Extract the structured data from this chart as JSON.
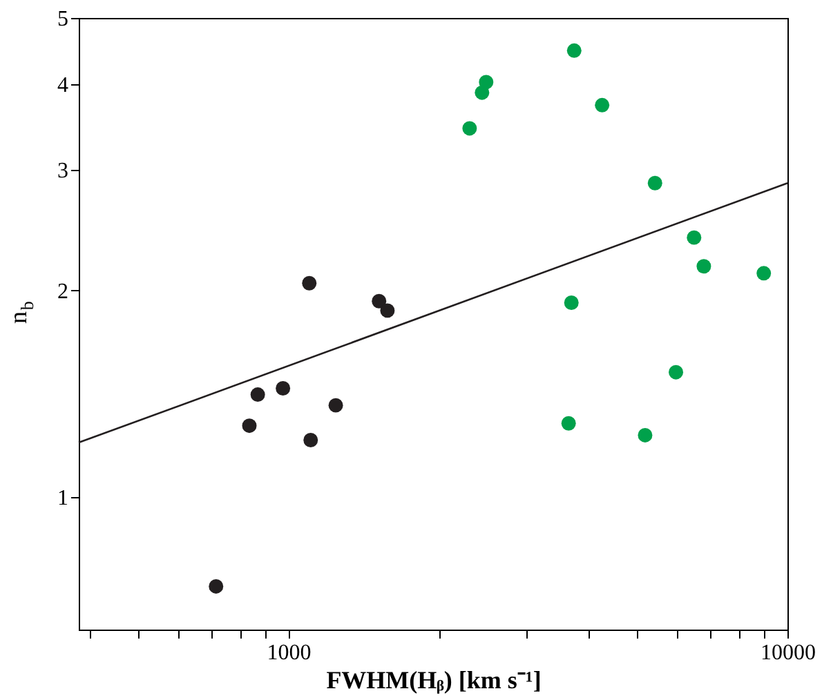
{
  "chart_data": {
    "type": "scatter",
    "xlabel": "FWHM(Hᵦ) [km s⁻¹]",
    "ylabel": "n$_{b}$",
    "log": "xy",
    "grid": false,
    "marker": "circle",
    "xlim": [
      380,
      10000
    ],
    "ylim": [
      0.64,
      5
    ],
    "xticks": [
      {
        "value": 400,
        "label": null
      },
      {
        "value": 500,
        "label": null
      },
      {
        "value": 600,
        "label": null
      },
      {
        "value": 700,
        "label": null
      },
      {
        "value": 800,
        "label": null
      },
      {
        "value": 900,
        "label": null
      },
      1000,
      {
        "value": 2000,
        "label": null
      },
      {
        "value": 3000,
        "label": null
      },
      {
        "value": 4000,
        "label": null
      },
      {
        "value": 5000,
        "label": null
      },
      {
        "value": 6000,
        "label": null
      },
      {
        "value": 7000,
        "label": null
      },
      {
        "value": 8000,
        "label": null
      },
      {
        "value": 9000,
        "label": null
      },
      10000
    ],
    "yticks": [
      1,
      2,
      3,
      4,
      5
    ],
    "series": [
      {
        "color": "#231f20",
        "x": [
          716,
          835,
          868,
          975,
          1101,
          1108,
          1244,
          1519,
          1579
        ],
        "values": [
          0.74,
          1.27,
          1.41,
          1.44,
          2.05,
          1.21,
          1.36,
          1.93,
          1.87
        ]
      },
      {
        "color": "#00a14b",
        "x": [
          2307,
          2443,
          2490,
          3738,
          4252,
          3690,
          3643,
          5427,
          5185,
          5977,
          6499,
          6798,
          8965
        ],
        "values": [
          3.45,
          3.89,
          4.03,
          4.48,
          3.73,
          1.92,
          1.28,
          2.87,
          1.23,
          1.52,
          2.39,
          2.17,
          2.12
        ]
      },
      {
        "type": "line",
        "marker": "none",
        "color": "#231f20",
        "x": [
          380,
          10000
        ],
        "values": [
          1.2,
          2.87
        ]
      }
    ]
  }
}
